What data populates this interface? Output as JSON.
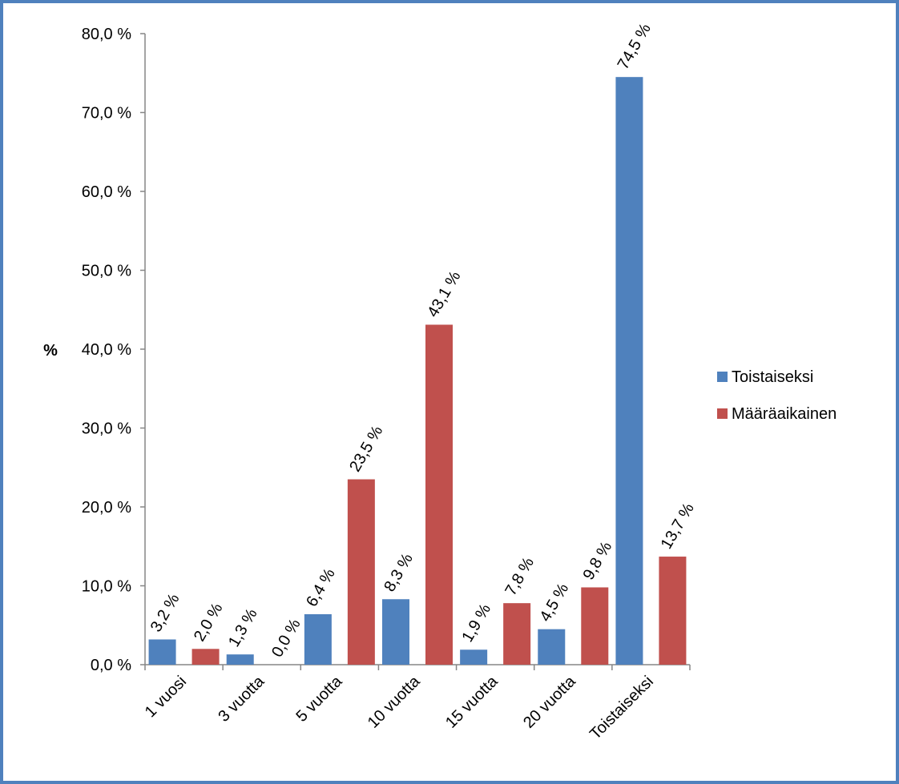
{
  "chart_data": {
    "type": "bar",
    "categories": [
      "1 vuosi",
      "3 vuotta",
      "5 vuotta",
      "10 vuotta",
      "15 vuotta",
      "20 vuotta",
      "Toistaiseksi"
    ],
    "series": [
      {
        "name": "Toistaiseksi",
        "color": "#4f81bd",
        "values": [
          3.2,
          1.3,
          6.4,
          8.3,
          1.9,
          4.5,
          74.5
        ],
        "labels": [
          "3,2 %",
          "1,3 %",
          "6,4 %",
          "8,3 %",
          "1,9 %",
          "4,5 %",
          "74,5 %"
        ]
      },
      {
        "name": "Määräaikainen",
        "color": "#c0504d",
        "values": [
          2.0,
          0.0,
          23.5,
          43.1,
          7.8,
          9.8,
          13.7
        ],
        "labels": [
          "2,0 %",
          "0,0 %",
          "23,5 %",
          "43,1 %",
          "7,8 %",
          "9,8 %",
          "13,7 %"
        ]
      }
    ],
    "ylabel": "%",
    "xlabel": "",
    "ylim": [
      0,
      80
    ],
    "yticks": [
      {
        "value": 0,
        "label": "0,0 %"
      },
      {
        "value": 10,
        "label": "10,0 %"
      },
      {
        "value": 20,
        "label": "20,0 %"
      },
      {
        "value": 30,
        "label": "30,0 %"
      },
      {
        "value": 40,
        "label": "40,0 %"
      },
      {
        "value": 50,
        "label": "50,0 %"
      },
      {
        "value": 60,
        "label": "60,0 %"
      },
      {
        "value": 70,
        "label": "70,0 %"
      },
      {
        "value": 80,
        "label": "80,0 %"
      }
    ],
    "grid": false,
    "legend_position": "right"
  }
}
